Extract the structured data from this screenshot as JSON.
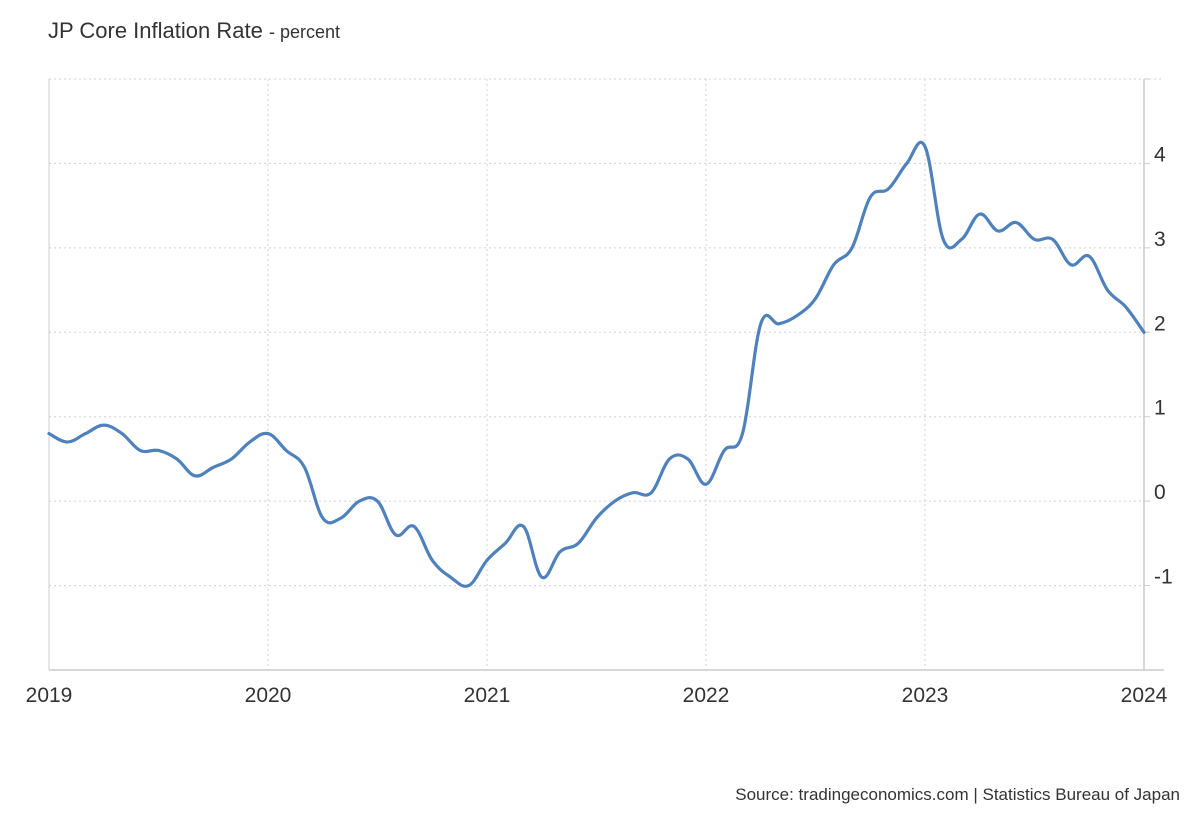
{
  "header": {
    "title": "JP Core Inflation Rate",
    "unit": "- percent"
  },
  "footer": {
    "source": "Source: tradingeconomics.com | Statistics Bureau of Japan"
  },
  "colors": {
    "line": "#4f81bd",
    "grid": "#d0d0d0",
    "axis": "#cccccc",
    "text": "#333333"
  },
  "chart_data": {
    "type": "line",
    "title": "JP Core Inflation Rate",
    "subtitle": "- percent",
    "xlabel": "",
    "ylabel": "",
    "xlim": [
      "2019-01",
      "2024-01"
    ],
    "ylim": [
      -2,
      5
    ],
    "x_ticks": [
      "2019",
      "2020",
      "2021",
      "2022",
      "2023",
      "2024"
    ],
    "y_ticks": [
      -1,
      0,
      1,
      2,
      3,
      4
    ],
    "grid": true,
    "y_axis_position": "right",
    "series": [
      {
        "x": [
          "2019-01",
          "2019-02",
          "2019-03",
          "2019-04",
          "2019-05",
          "2019-06",
          "2019-07",
          "2019-08",
          "2019-09",
          "2019-10",
          "2019-11",
          "2019-12",
          "2020-01",
          "2020-02",
          "2020-03",
          "2020-04",
          "2020-05",
          "2020-06",
          "2020-07",
          "2020-08",
          "2020-09",
          "2020-10",
          "2020-11",
          "2020-12",
          "2021-01",
          "2021-02",
          "2021-03",
          "2021-04",
          "2021-05",
          "2021-06",
          "2021-07",
          "2021-08",
          "2021-09",
          "2021-10",
          "2021-11",
          "2021-12",
          "2022-01",
          "2022-02",
          "2022-03",
          "2022-04",
          "2022-05",
          "2022-06",
          "2022-07",
          "2022-08",
          "2022-09",
          "2022-10",
          "2022-11",
          "2022-12",
          "2023-01",
          "2023-02",
          "2023-03",
          "2023-04",
          "2023-05",
          "2023-06",
          "2023-07",
          "2023-08",
          "2023-09",
          "2023-10",
          "2023-11",
          "2023-12",
          "2024-01"
        ],
        "values": [
          0.8,
          0.7,
          0.8,
          0.9,
          0.8,
          0.6,
          0.6,
          0.5,
          0.3,
          0.4,
          0.5,
          0.7,
          0.8,
          0.6,
          0.4,
          -0.2,
          -0.2,
          0.0,
          0.0,
          -0.4,
          -0.3,
          -0.7,
          -0.9,
          -1.0,
          -0.7,
          -0.5,
          -0.3,
          -0.9,
          -0.6,
          -0.5,
          -0.2,
          0.0,
          0.1,
          0.1,
          0.5,
          0.5,
          0.2,
          0.6,
          0.8,
          2.1,
          2.1,
          2.2,
          2.4,
          2.8,
          3.0,
          3.6,
          3.7,
          4.0,
          4.2,
          3.1,
          3.1,
          3.4,
          3.2,
          3.3,
          3.1,
          3.1,
          2.8,
          2.9,
          2.5,
          2.3,
          2.0
        ]
      }
    ]
  }
}
